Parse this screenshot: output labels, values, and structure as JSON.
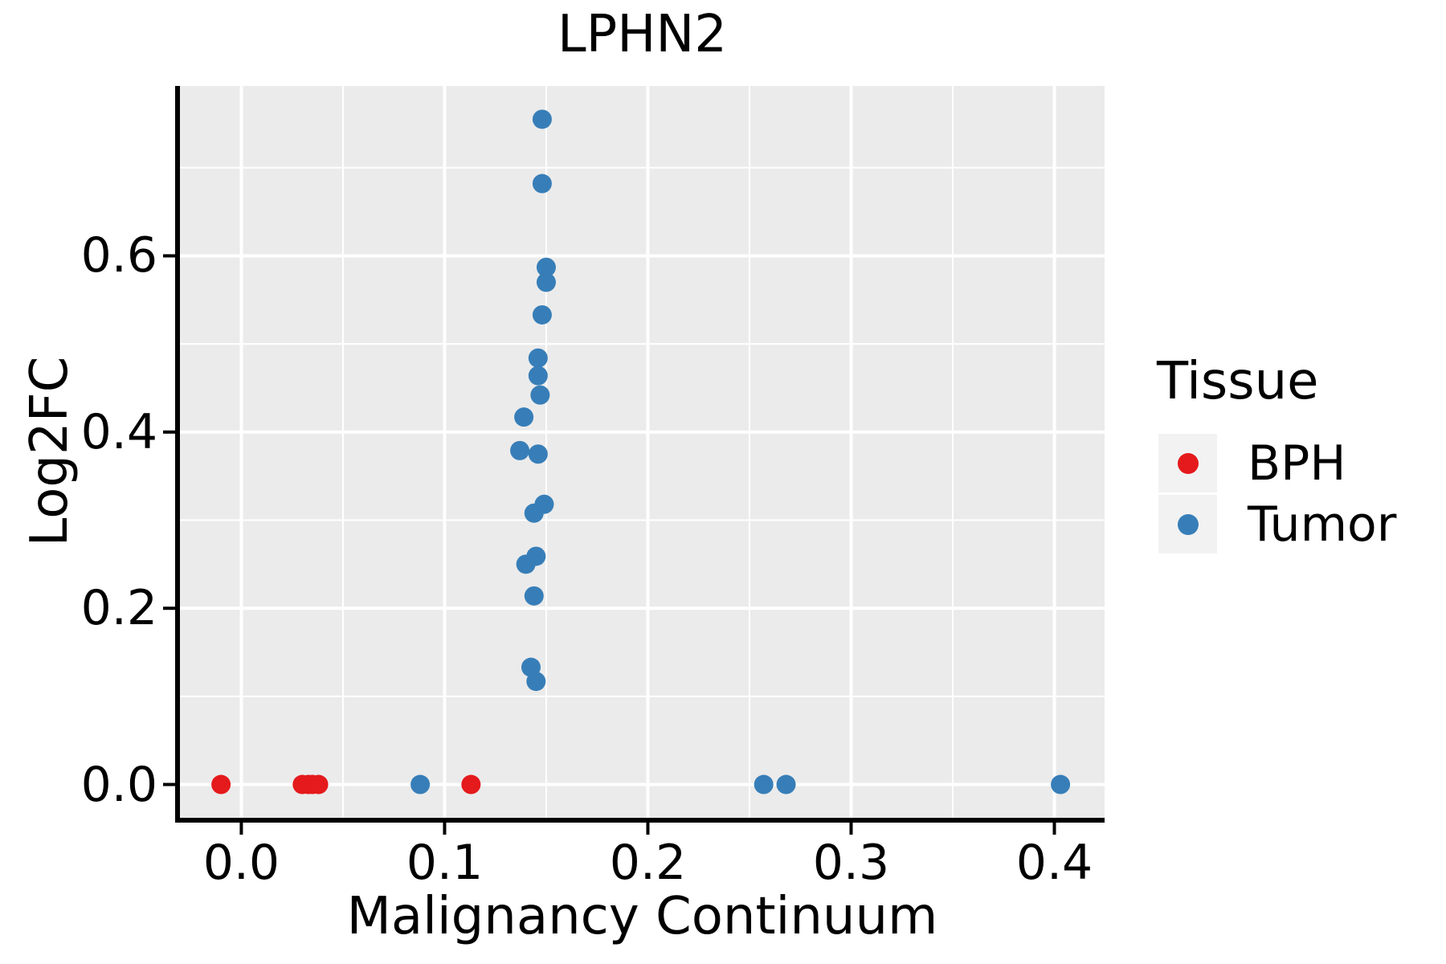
{
  "title": "LPHN2",
  "colors": {
    "bph": "#E41A1C",
    "tumor": "#377EB8",
    "panel_bg": "#EBEBEB",
    "grid": "#FFFFFF",
    "axis": "#000000",
    "text": "#000000",
    "legend_key_bg": "#F2F2F2"
  },
  "legend": {
    "title": "Tissue",
    "entries": [
      {
        "label": "BPH",
        "color": "#E41A1C"
      },
      {
        "label": "Tumor",
        "color": "#377EB8"
      }
    ]
  },
  "chart_data": {
    "type": "scatter",
    "title": "LPHN2",
    "xlabel": "Malignancy Continuum",
    "ylabel": "Log2FC",
    "xlim": [
      -0.0302,
      0.4247
    ],
    "ylim": [
      -0.0378,
      0.7928
    ],
    "grid": true,
    "legend_position": "right",
    "legend_title": "Tissue",
    "x_major_ticks": [
      0.0,
      0.1,
      0.2,
      0.3,
      0.4
    ],
    "x_tick_labels": [
      "0.0",
      "0.1",
      "0.2",
      "0.3",
      "0.4"
    ],
    "x_minor_ticks": [
      0.05,
      0.15,
      0.25,
      0.35
    ],
    "y_major_ticks": [
      0.0,
      0.2,
      0.4,
      0.6
    ],
    "y_tick_labels": [
      "0.0",
      "0.2",
      "0.4",
      "0.6"
    ],
    "y_minor_ticks": [
      0.1,
      0.3,
      0.5,
      0.7
    ],
    "point_radius_px": 12,
    "series": [
      {
        "name": "BPH",
        "color": "#E41A1C",
        "points": [
          [
            -0.01,
            0.0
          ],
          [
            0.03,
            0.0
          ],
          [
            0.033,
            0.0
          ],
          [
            0.035,
            0.0
          ],
          [
            0.038,
            0.0
          ],
          [
            0.113,
            0.0
          ]
        ]
      },
      {
        "name": "Tumor",
        "color": "#377EB8",
        "points": [
          [
            0.088,
            0.0
          ],
          [
            0.257,
            0.0
          ],
          [
            0.268,
            0.0
          ],
          [
            0.403,
            0.0
          ],
          [
            0.148,
            0.755
          ],
          [
            0.148,
            0.682
          ],
          [
            0.15,
            0.587
          ],
          [
            0.15,
            0.57
          ],
          [
            0.148,
            0.533
          ],
          [
            0.146,
            0.484
          ],
          [
            0.146,
            0.464
          ],
          [
            0.147,
            0.442
          ],
          [
            0.139,
            0.417
          ],
          [
            0.137,
            0.379
          ],
          [
            0.146,
            0.375
          ],
          [
            0.149,
            0.318
          ],
          [
            0.144,
            0.308
          ],
          [
            0.145,
            0.259
          ],
          [
            0.14,
            0.25
          ],
          [
            0.144,
            0.214
          ],
          [
            0.1425,
            0.133
          ],
          [
            0.145,
            0.117
          ]
        ]
      }
    ]
  }
}
